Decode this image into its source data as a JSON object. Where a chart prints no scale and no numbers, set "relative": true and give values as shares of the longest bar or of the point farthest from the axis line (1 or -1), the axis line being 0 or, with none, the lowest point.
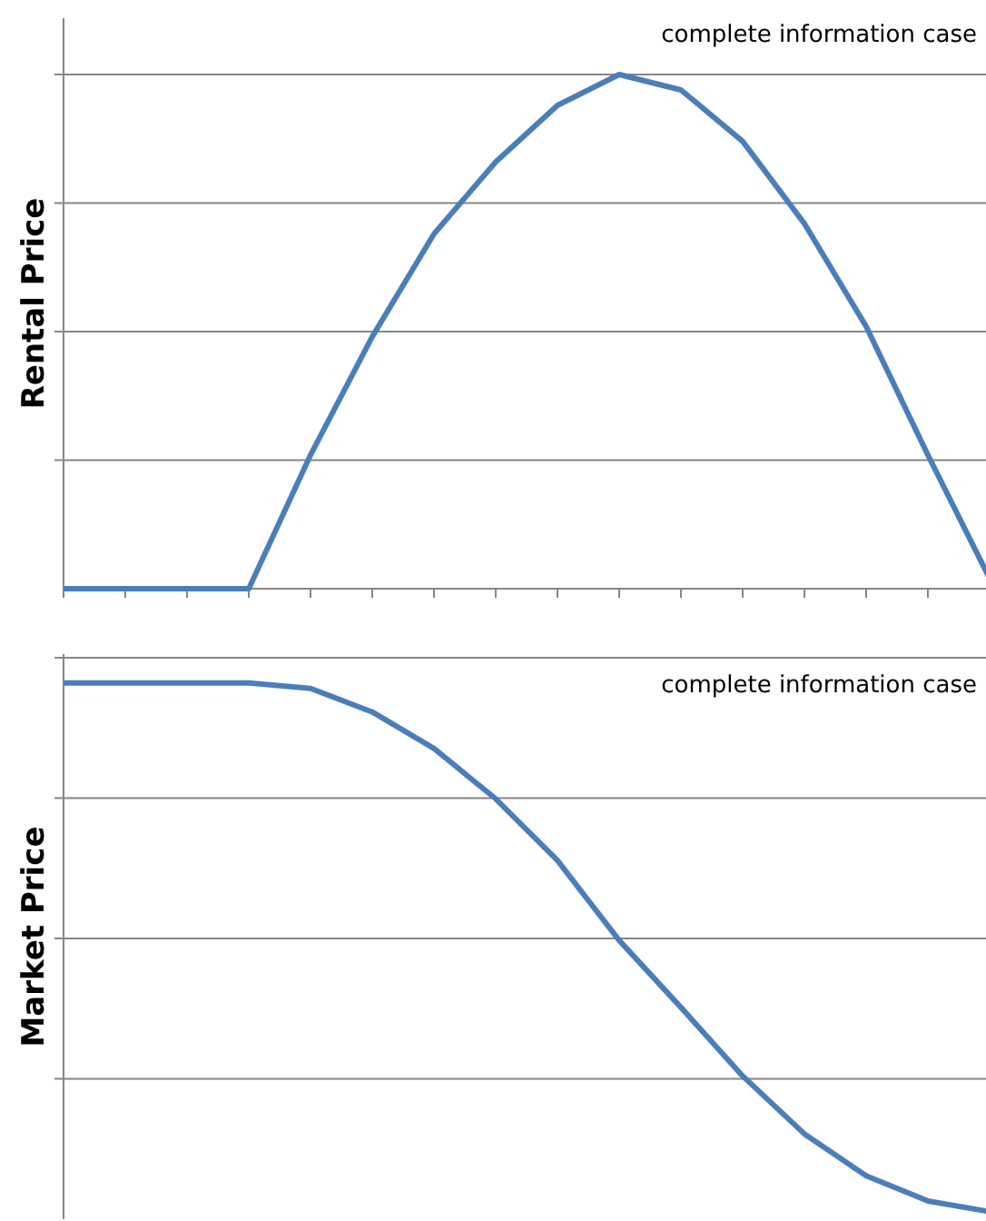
{
  "chart_data": [
    {
      "type": "line",
      "relative": true,
      "ylabel": "Rental Price",
      "annotations": [
        "complete information case"
      ],
      "categories": [
        null,
        null,
        null,
        null,
        null,
        null,
        null,
        null,
        null,
        null,
        null,
        null,
        null,
        null,
        null,
        null
      ],
      "grid": "y",
      "marker": "none",
      "line_style": "solid",
      "series": [
        {
          "color": "#4a7ebb",
          "values": [
            0,
            0,
            0,
            0,
            0.26,
            0.49,
            0.69,
            0.83,
            0.94,
            1,
            0.97,
            0.87,
            0.71,
            0.51,
            0.26,
            0.02
          ]
        }
      ]
    },
    {
      "type": "line",
      "relative": true,
      "ylabel": "Market Price",
      "annotations": [
        "complete information case"
      ],
      "categories": [
        null,
        null,
        null,
        null,
        null,
        null,
        null,
        null,
        null,
        null,
        null,
        null,
        null,
        null,
        null,
        null
      ],
      "grid": "y",
      "marker": "none",
      "line_style": "solid",
      "series": [
        {
          "color": "#4a7ebb",
          "values": [
            1,
            1,
            1,
            1,
            0.99,
            0.946,
            0.878,
            0.784,
            0.669,
            0.52,
            0.395,
            0.267,
            0.159,
            0.081,
            0.034,
            0.014
          ]
        }
      ]
    }
  ]
}
